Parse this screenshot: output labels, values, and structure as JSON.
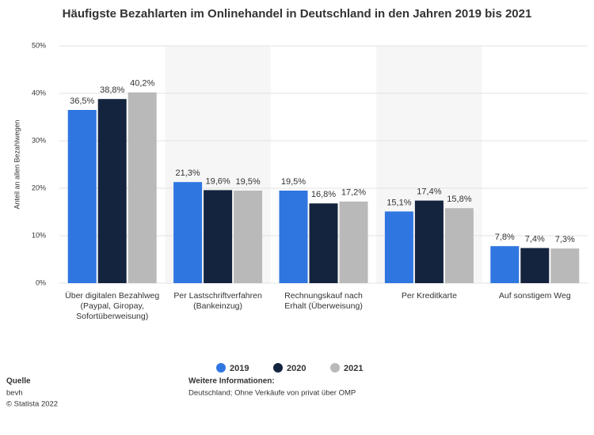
{
  "chart_data": {
    "type": "bar",
    "title": "Häufigste Bezahlarten im Onlinehandel in Deutschland in den Jahren 2019 bis 2021",
    "y_label": "Anteil an allen Bezahlwegen",
    "categories": [
      "Über digitalen Bezahlweg (Paypal, Giropay, Sofortüberweisung)",
      "Per Lastschriftverfahren (Bankeinzug)",
      "Rechnungskauf nach Erhalt (Überweisung)",
      "Per Kreditkarte",
      "Auf sonstigem Weg"
    ],
    "series": [
      {
        "name": "2019",
        "color": "#2f76e0",
        "values": [
          36.5,
          21.3,
          19.5,
          15.1,
          7.8
        ],
        "value_labels": [
          "36,5%",
          "21,3%",
          "19,5%",
          "15,1%",
          "7,8%"
        ]
      },
      {
        "name": "2020",
        "color": "#14243f",
        "values": [
          38.8,
          19.6,
          16.8,
          17.4,
          7.4
        ],
        "value_labels": [
          "38,8%",
          "19,6%",
          "16,8%",
          "17,4%",
          "7,4%"
        ]
      },
      {
        "name": "2021",
        "color": "#b9b9b9",
        "values": [
          40.2,
          19.5,
          17.2,
          15.8,
          7.3
        ],
        "value_labels": [
          "40,2%",
          "19,5%",
          "17,2%",
          "15,8%",
          "7,3%"
        ]
      }
    ],
    "ylim": [
      0,
      50
    ],
    "yticks": [
      {
        "value": 0,
        "label": "0%"
      },
      {
        "value": 10,
        "label": "10%"
      },
      {
        "value": 20,
        "label": "20%"
      },
      {
        "value": 30,
        "label": "30%"
      },
      {
        "value": 40,
        "label": "40%"
      },
      {
        "value": 50,
        "label": "50%"
      }
    ],
    "grid": true,
    "source_label": "Quelle",
    "source": "bevh",
    "copyright": "© Statista 2022",
    "info_label": "Weitere Informationen:",
    "info": "Deutschland; Ohne Verkäufe von privat über OMP"
  }
}
